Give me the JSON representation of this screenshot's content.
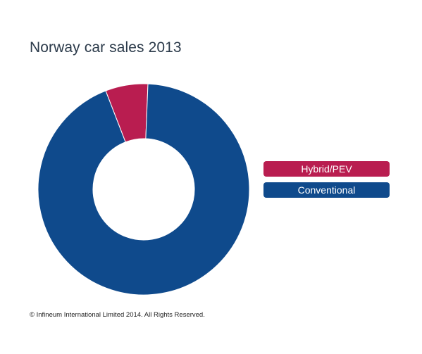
{
  "chart_data": {
    "type": "pie",
    "title": "Norway car sales 2013",
    "donut": true,
    "slices": [
      {
        "label": "Hybrid/PEV",
        "value": 6.5,
        "color": "#b91d50"
      },
      {
        "label": "Conventional",
        "value": 93.5,
        "color": "#0f4a8c"
      }
    ],
    "legend_placement": "right"
  },
  "footer": "© Infineum International Limited 2014. All Rights Reserved."
}
